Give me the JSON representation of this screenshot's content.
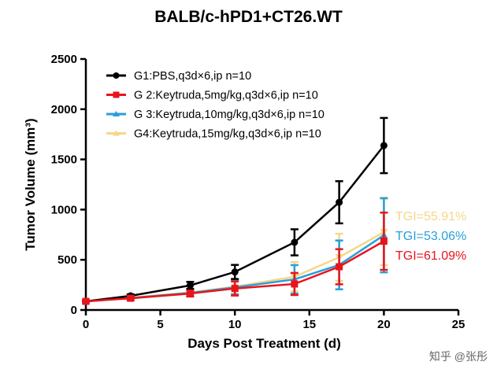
{
  "chart_data": {
    "type": "line",
    "title": "BALB/c-hPD1+CT26.WT",
    "xlabel": "Days Post Treatment (d)",
    "ylabel": "Tumor Volume (mm³)",
    "xlim": [
      0,
      25
    ],
    "ylim": [
      0,
      2500
    ],
    "xticks": [
      0,
      5,
      10,
      15,
      20,
      25
    ],
    "yticks": [
      0,
      500,
      1000,
      1500,
      2000,
      2500
    ],
    "grid": false,
    "legend_position": "top-left",
    "x": [
      0,
      3,
      7,
      10,
      14,
      17,
      20
    ],
    "series": [
      {
        "name": "G1:PBS,q3d×6,ip n=10",
        "color": "#000000",
        "marker": "circle",
        "values": [
          86,
          141,
          245,
          379,
          674,
          1073,
          1638
        ],
        "error": [
          8,
          15,
          35,
          70,
          130,
          210,
          275
        ]
      },
      {
        "name": "G 2:Keytruda,5mg/kg,q3d×6,ip n=10",
        "color": "#e8141c",
        "marker": "square",
        "values": [
          86,
          117,
          164,
          214,
          259,
          431,
          685
        ],
        "error": [
          8,
          15,
          30,
          70,
          110,
          175,
          285
        ]
      },
      {
        "name": "G 3:Keytruda,10mg/kg,q3d×6,ip n=10",
        "color": "#2a9fd8",
        "marker": "triangle",
        "values": [
          86,
          120,
          170,
          225,
          305,
          449,
          745
        ],
        "error": [
          8,
          15,
          30,
          70,
          142,
          243,
          370
        ]
      },
      {
        "name": "G4:Keytruda,15mg/kg,q3d×6,ip n=10",
        "color": "#f5d78a",
        "marker": "triangle-down",
        "values": [
          86,
          122,
          175,
          232,
          331,
          525,
          776
        ],
        "error": [
          8,
          15,
          30,
          70,
          147,
          235,
          330
        ]
      }
    ],
    "annotations": [
      {
        "text": "TGI=55.91%",
        "color": "#f5d78a"
      },
      {
        "text": "TGI=53.06%",
        "color": "#2a9fd8"
      },
      {
        "text": "TGI=61.09%",
        "color": "#e8141c"
      }
    ]
  },
  "watermark": "知乎 @张彤"
}
